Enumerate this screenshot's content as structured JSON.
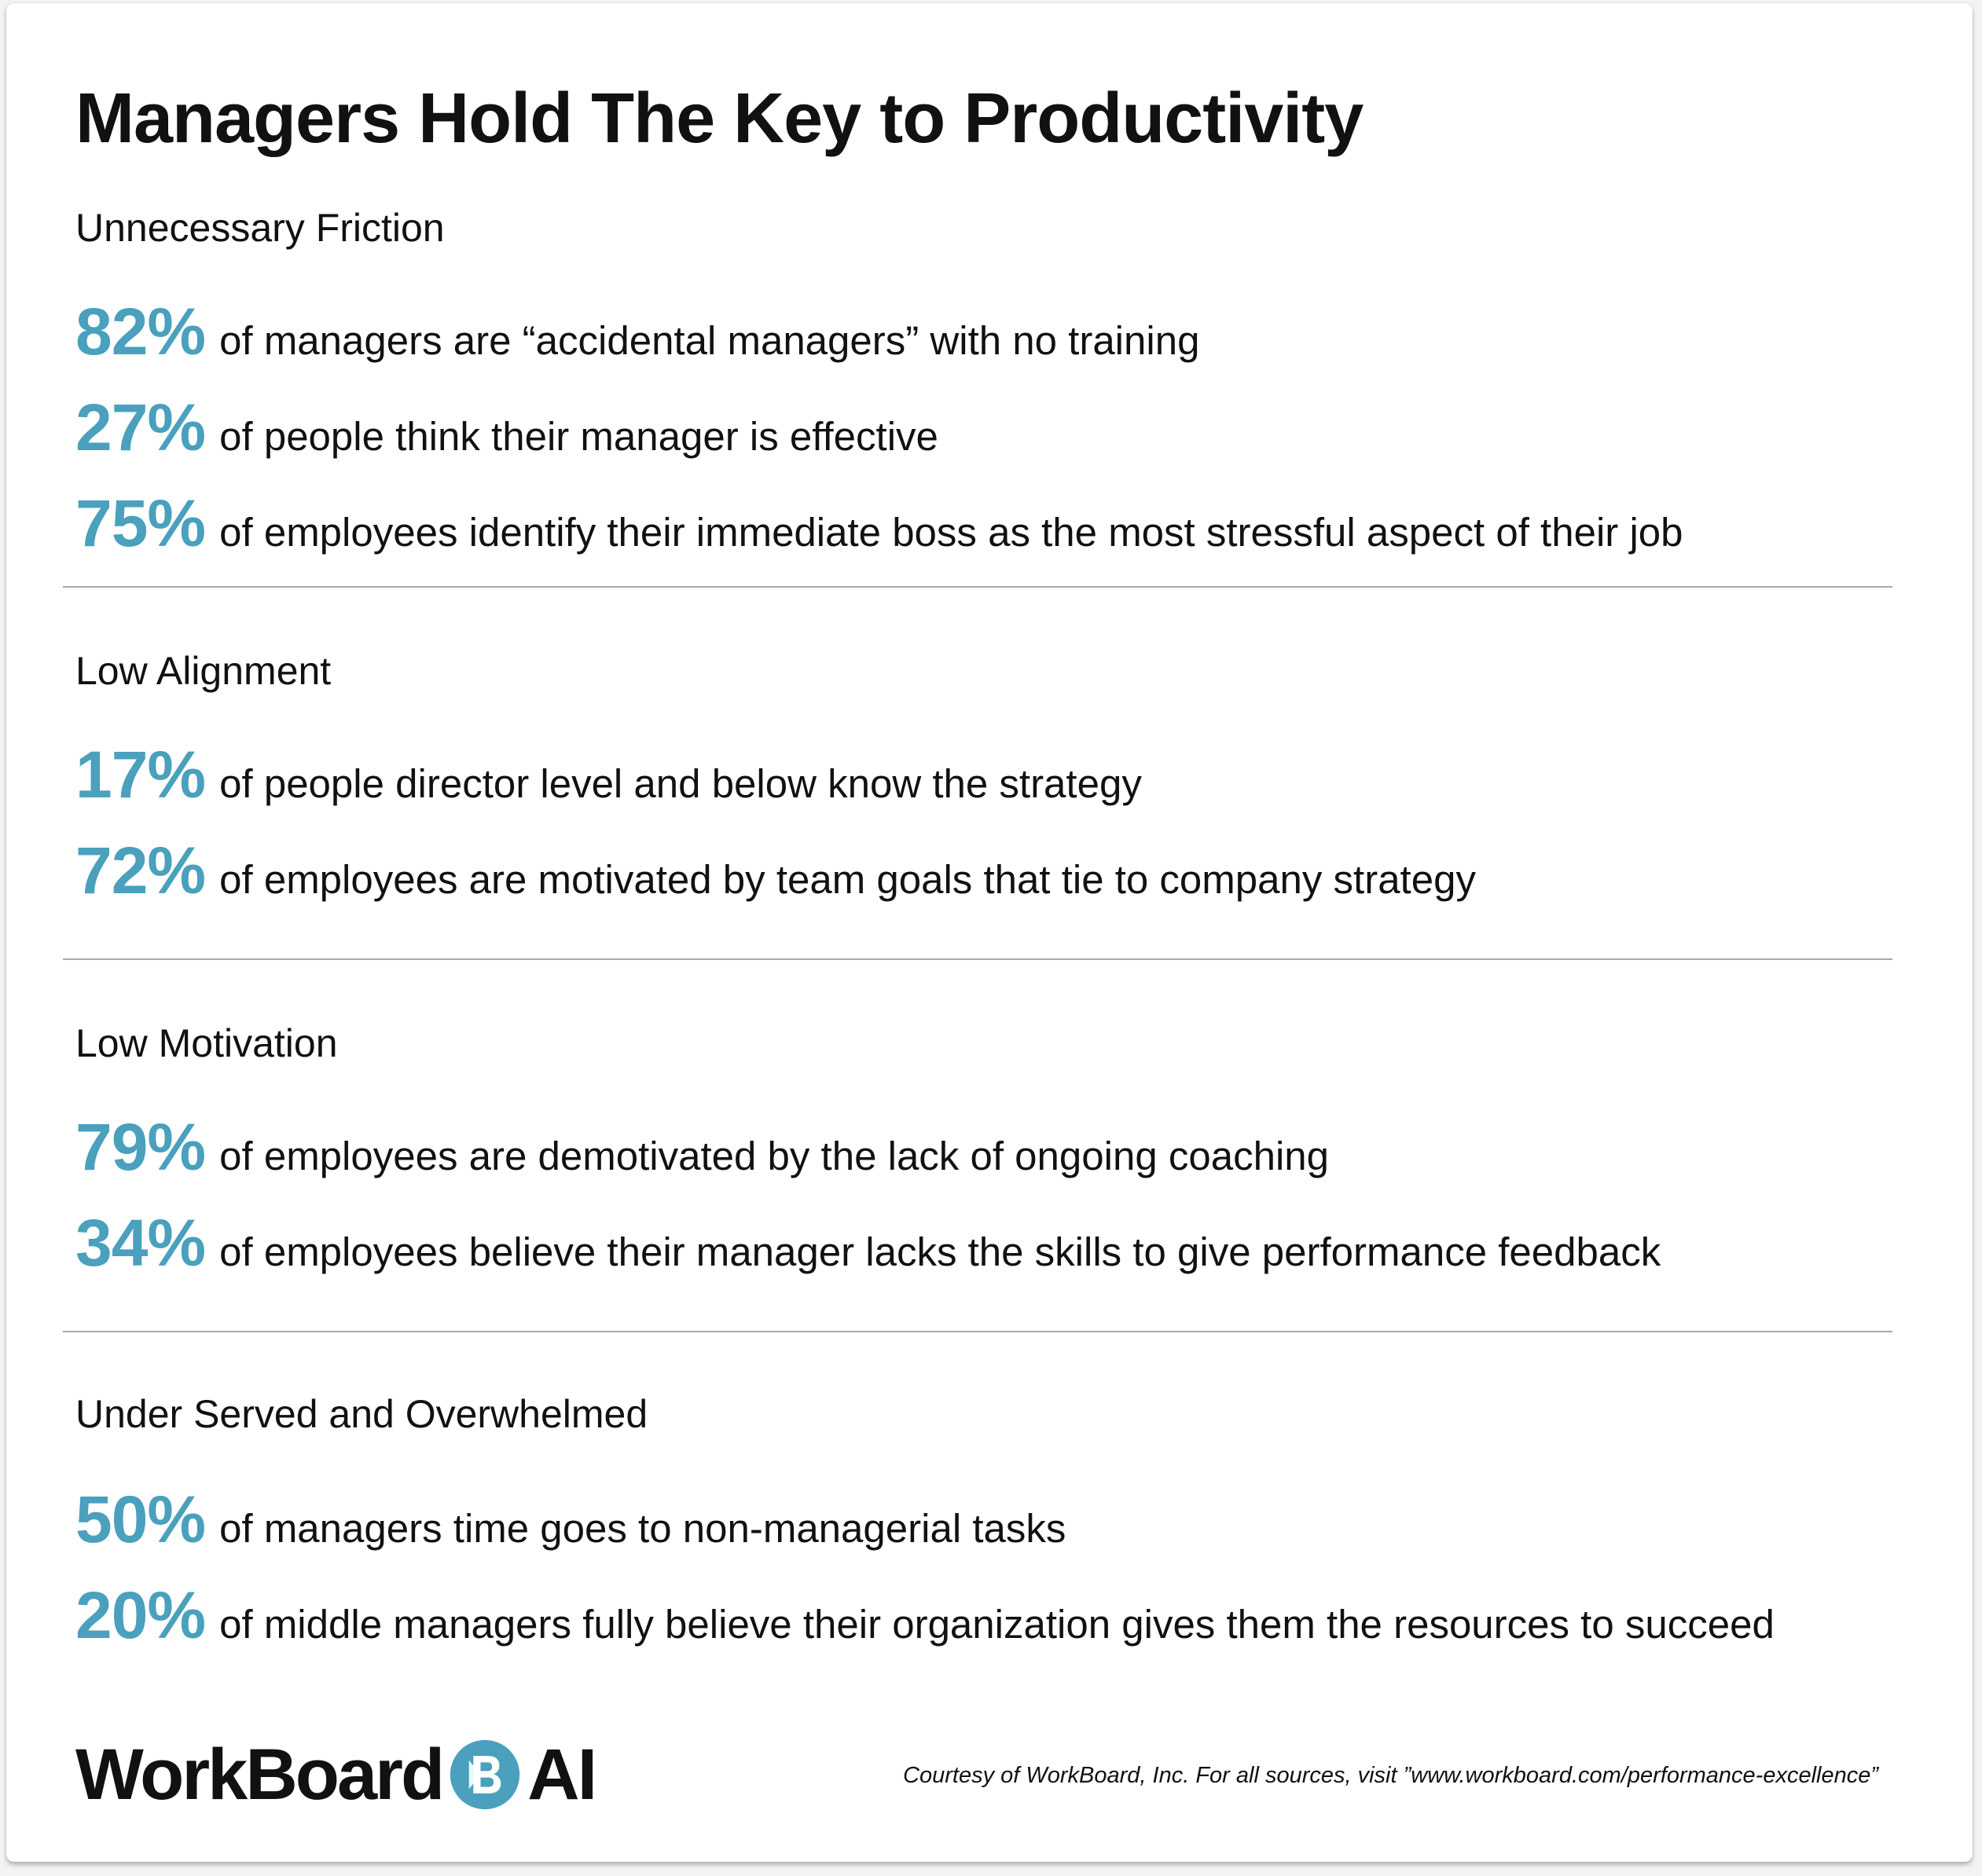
{
  "title": "Managers Hold The Key to Productivity",
  "sections": [
    {
      "heading": "Unnecessary Friction",
      "stats": [
        {
          "value": "82%",
          "text": "of managers are “accidental managers” with no training"
        },
        {
          "value": "27%",
          "text": "of people think their manager is effective"
        },
        {
          "value": "75%",
          "text": "of employees identify their immediate boss as the most stressful aspect of their job"
        }
      ]
    },
    {
      "heading": "Low Alignment",
      "stats": [
        {
          "value": "17%",
          "text": "of people director level and below know the strategy"
        },
        {
          "value": "72%",
          "text": "of employees are motivated by team goals that tie to company strategy"
        }
      ]
    },
    {
      "heading": "Low Motivation",
      "stats": [
        {
          "value": "79%",
          "text": "of employees are demotivated by the lack of ongoing coaching"
        },
        {
          "value": "34%",
          "text": "of employees believe their manager lacks the skills to give performance feedback"
        }
      ]
    },
    {
      "heading": "Under Served and Overwhelmed",
      "stats": [
        {
          "value": "50%",
          "text": "of managers time goes to non-managerial tasks"
        },
        {
          "value": "20%",
          "text": "of middle managers fully believe their organization gives them the resources to succeed"
        }
      ]
    }
  ],
  "footer": {
    "logo_left": "WorkBoard",
    "logo_right": "AI",
    "logo_icon": "workboard-b-icon",
    "courtesy": "Courtesy of WorkBoard, Inc.  For all sources, visit ”www.workboard.com/performance-excellence”"
  },
  "colors": {
    "accent": "#4aa0bd",
    "text": "#111111",
    "divider": "#a8a8a8"
  }
}
